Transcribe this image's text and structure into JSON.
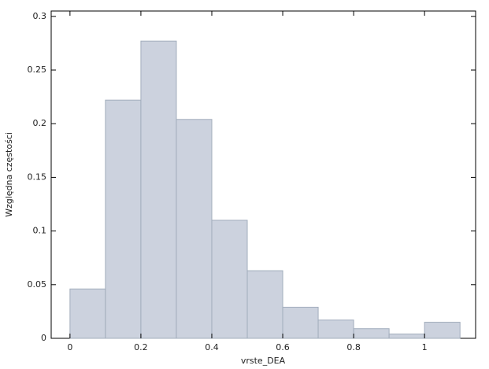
{
  "chart_data": {
    "type": "histogram",
    "x_label": "vrste_DEA",
    "y_label": "Względna częstości",
    "bins": [
      0,
      0.1,
      0.2,
      0.3,
      0.4,
      0.5,
      0.6,
      0.7,
      0.8,
      0.9,
      1.0,
      1.1
    ],
    "values": [
      0.046,
      0.222,
      0.277,
      0.204,
      0.11,
      0.063,
      0.029,
      0.017,
      0.009,
      0.004,
      0.015
    ],
    "color": "#ccd2de",
    "edge_color": "#a2adbc",
    "xlim": [
      -0.053,
      1.144
    ],
    "ylim": [
      0,
      0.305
    ],
    "xticks": [
      0,
      0.2,
      0.4,
      0.6,
      0.8,
      1
    ],
    "yticks": [
      0,
      0.05,
      0.1,
      0.15,
      0.2,
      0.25,
      0.3
    ]
  }
}
